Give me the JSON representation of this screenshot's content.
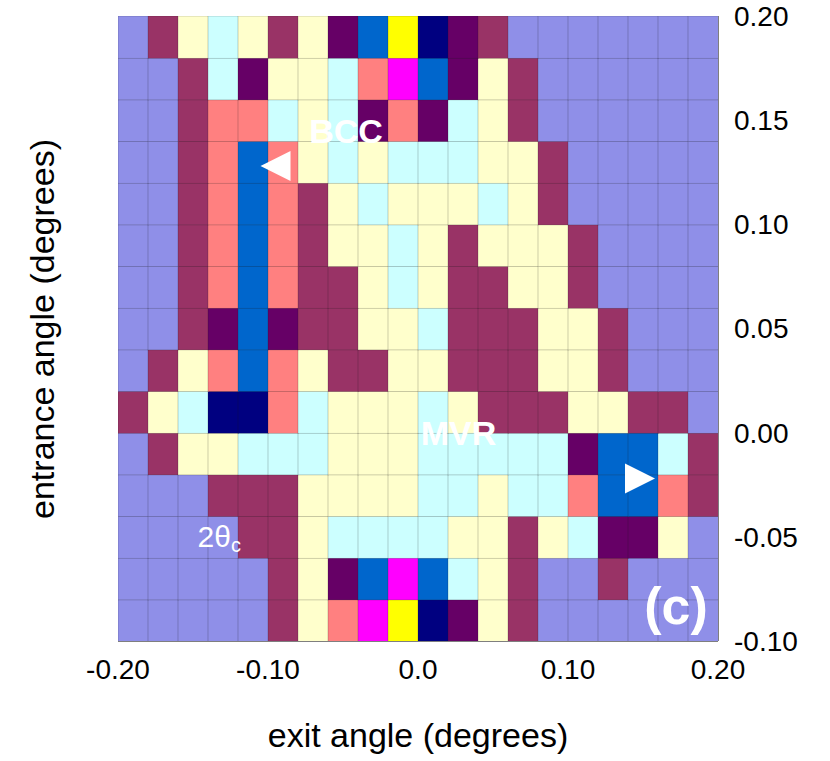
{
  "chart_data": {
    "type": "heatmap",
    "x_label": "exit angle (degrees)",
    "y_label": "entrance angle (degrees)",
    "xlim": [
      -0.2,
      0.2
    ],
    "ylim": [
      -0.1,
      0.2
    ],
    "xticks": [
      {
        "value": -0.2,
        "label": "-0.20"
      },
      {
        "value": -0.1,
        "label": "-0.10"
      },
      {
        "value": 0,
        "label": "0.0"
      },
      {
        "value": 0.1,
        "label": "0.10"
      },
      {
        "value": 0.2,
        "label": "0.20"
      }
    ],
    "yticks": [
      {
        "value": -0.1,
        "label": "-0.10"
      },
      {
        "value": -0.05,
        "label": "-0.05"
      },
      {
        "value": 0,
        "label": "0.00"
      },
      {
        "value": 0.05,
        "label": "0.05"
      },
      {
        "value": 0.1,
        "label": "0.10"
      },
      {
        "value": 0.15,
        "label": "0.15"
      },
      {
        "value": 0.2,
        "label": "0.20"
      }
    ],
    "x": [
      -0.19,
      -0.17,
      -0.15,
      -0.13,
      -0.11,
      -0.09,
      -0.07,
      -0.05,
      -0.03,
      -0.01,
      0.01,
      0.03,
      0.05,
      0.07,
      0.09,
      0.11,
      0.13,
      0.15,
      0.17,
      0.19
    ],
    "y": [
      -0.09,
      -0.07,
      -0.05,
      -0.03,
      -0.01,
      0.01,
      0.03,
      0.05,
      0.07,
      0.09,
      0.11,
      0.13,
      0.15,
      0.17,
      0.19
    ],
    "cells": [
      [
        0,
        0,
        0,
        0,
        0,
        1,
        2,
        5,
        8,
        9,
        7,
        4,
        2,
        1,
        0,
        0,
        0,
        0,
        0,
        0
      ],
      [
        0,
        0,
        0,
        0,
        0,
        1,
        2,
        4,
        6,
        8,
        6,
        3,
        2,
        1,
        0,
        0,
        1,
        0,
        0,
        0
      ],
      [
        0,
        0,
        0,
        0,
        1,
        1,
        2,
        3,
        3,
        3,
        3,
        2,
        2,
        1,
        2,
        3,
        4,
        4,
        2,
        0
      ],
      [
        0,
        0,
        0,
        1,
        1,
        1,
        2,
        2,
        2,
        2,
        3,
        3,
        2,
        3,
        3,
        5,
        6,
        6,
        5,
        1
      ],
      [
        0,
        1,
        2,
        2,
        3,
        3,
        3,
        2,
        2,
        2,
        3,
        3,
        3,
        3,
        3,
        4,
        6,
        6,
        3,
        1
      ],
      [
        1,
        2,
        3,
        7,
        7,
        5,
        3,
        2,
        2,
        2,
        3,
        2,
        1,
        1,
        1,
        2,
        2,
        1,
        1,
        0
      ],
      [
        0,
        1,
        2,
        5,
        6,
        5,
        2,
        1,
        1,
        2,
        2,
        1,
        1,
        1,
        2,
        2,
        1,
        0,
        0,
        0
      ],
      [
        0,
        0,
        1,
        4,
        6,
        4,
        1,
        1,
        2,
        2,
        3,
        1,
        1,
        1,
        2,
        2,
        1,
        0,
        0,
        0
      ],
      [
        0,
        0,
        1,
        5,
        6,
        5,
        1,
        1,
        2,
        3,
        2,
        1,
        1,
        2,
        2,
        1,
        0,
        0,
        0,
        0
      ],
      [
        0,
        0,
        1,
        5,
        6,
        5,
        1,
        2,
        2,
        3,
        2,
        1,
        2,
        2,
        2,
        1,
        0,
        0,
        0,
        0
      ],
      [
        0,
        0,
        1,
        5,
        6,
        5,
        1,
        2,
        3,
        2,
        2,
        2,
        3,
        2,
        1,
        0,
        0,
        0,
        0,
        0
      ],
      [
        0,
        0,
        1,
        5,
        6,
        5,
        2,
        3,
        2,
        3,
        3,
        3,
        2,
        2,
        1,
        0,
        0,
        0,
        0,
        0
      ],
      [
        0,
        0,
        1,
        5,
        5,
        3,
        2,
        3,
        4,
        5,
        4,
        3,
        2,
        1,
        0,
        0,
        0,
        0,
        0,
        0
      ],
      [
        0,
        0,
        1,
        3,
        4,
        2,
        2,
        3,
        5,
        8,
        6,
        4,
        2,
        1,
        0,
        0,
        0,
        0,
        0,
        0
      ],
      [
        0,
        1,
        2,
        3,
        2,
        1,
        2,
        4,
        6,
        9,
        7,
        4,
        1,
        0,
        0,
        0,
        0,
        0,
        0,
        0
      ]
    ],
    "colors": [
      "#8f8fe8",
      "#993366",
      "#ffffcc",
      "#ccffff",
      "#660066",
      "#ff8080",
      "#0066cc",
      "#000080",
      "#ff00ff",
      "#ffff00",
      "#00ffff"
    ],
    "annotations": [
      {
        "text": "BCC",
        "x": -0.048,
        "y": 0.145,
        "arrow_from": [
          0.002,
          0.128
        ],
        "arrow_to": [
          -0.105,
          0.128
        ]
      },
      {
        "text": "MVR",
        "x": 0.027,
        "y": 0.0,
        "arrow_from": [
          -0.012,
          -0.022
        ],
        "arrow_to": [
          0.158,
          -0.022
        ]
      }
    ],
    "scale_bar": {
      "label": "2θ",
      "label_subscript": "c",
      "label_x": -0.147,
      "label_y": -0.05,
      "vertical": [
        [
          -0.17,
          -0.053
        ],
        [
          -0.17,
          -0.033
        ]
      ],
      "horizontal": [
        [
          -0.172,
          -0.066
        ],
        [
          -0.161,
          -0.066
        ]
      ]
    },
    "panel_label": {
      "text": "(c)",
      "x": 0.172,
      "y": -0.083
    }
  }
}
